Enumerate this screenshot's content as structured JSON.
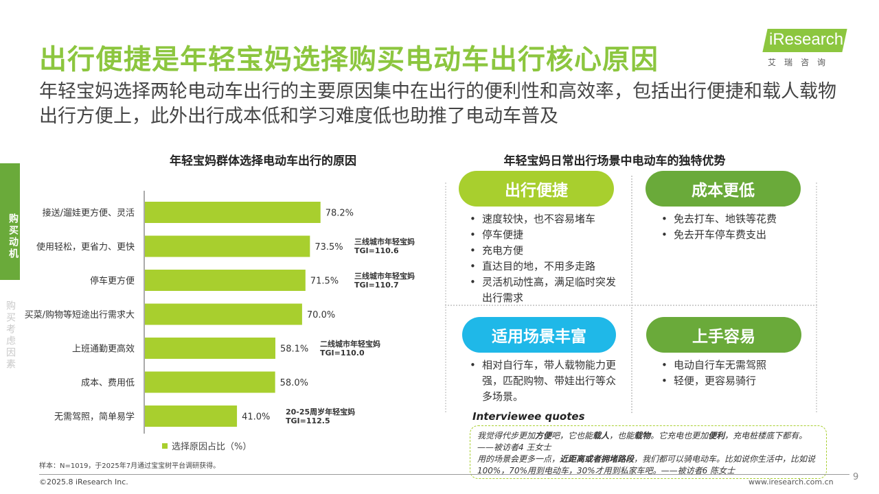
{
  "title": "出行便捷是年轻宝妈选择购买电动车出行核心原因",
  "subtitle": "年轻宝妈选择两轮电动车出行的主要原因集中在出行的便利性和高效率，包括出行便捷和载人载物出行方便上，此外出行成本低和学习难度低也助推了电动车普及",
  "logo": {
    "brand": "iResearch",
    "sub": "艾瑞咨询"
  },
  "side_tabs": {
    "active": "购买动机",
    "inactive": "购买考虑因素"
  },
  "chart_data": {
    "type": "bar",
    "orientation": "horizontal",
    "title": "年轻宝妈群体选择电动车出行的原因",
    "categories": [
      "接送/遛娃更方便、灵活",
      "使用轻松，更省力、更快",
      "停车更方便",
      "买菜/购物等短途出行需求大",
      "上班通勤更高效",
      "成本、费用低",
      "无需驾照，简单易学"
    ],
    "series": [
      {
        "name": "选择原因占比（%）",
        "values": [
          78.2,
          73.5,
          71.5,
          70.0,
          58.1,
          58.0,
          41.0
        ]
      }
    ],
    "value_labels": [
      "78.2%",
      "73.5%",
      "71.5%",
      "70.0%",
      "58.1%",
      "58.0%",
      "41.0%"
    ],
    "xlim": [
      0,
      100
    ],
    "color": "#a8cf2e",
    "annotations": [
      {
        "category": "使用轻松，更省力、更快",
        "line1": "三线城市年轻宝妈",
        "line2": "TGI=110.6"
      },
      {
        "category": "停车更方便",
        "line1": "三线城市年轻宝妈",
        "line2": "TGI=110.7"
      },
      {
        "category": "上班通勤更高效",
        "line1": "二线城市年轻宝妈",
        "line2": "TGI=110.0"
      },
      {
        "category": "无需驾照，简单易学",
        "line1": "20-25周岁年轻宝妈",
        "line2": "TGI=112.5"
      }
    ]
  },
  "right_panel": {
    "title": "年轻宝妈日常出行场景中电动车的独特优势",
    "quadrants": [
      {
        "label": "出行便捷",
        "items": [
          "速度较快，也不容易堵车",
          "停车便捷",
          "充电方便",
          "直达目的地，不用多走路",
          "灵活机动性高，满足临时突发出行需求"
        ]
      },
      {
        "label": "成本更低",
        "items": [
          "免去打车、地铁等花费",
          "免去开车停车费支出"
        ]
      },
      {
        "label": "适用场景丰富",
        "items": [
          "相对自行车，带人载物能力更强，匹配购物、带娃出行等众多场景。"
        ]
      },
      {
        "label": "上手容易",
        "items": [
          "电动自行车无需驾照",
          "轻便，更容易骑行"
        ]
      }
    ]
  },
  "quotes": {
    "title": "Interviewee quotes",
    "q1": {
      "a": "我觉得代步更加",
      "b": "方便",
      "c": "吧，它也能",
      "d": "载人",
      "e": "，也能",
      "f": "载物",
      "g": "。它充电也更加",
      "h": "便利",
      "i": "，充电桩楼底下都有。——被访者4 王女士"
    },
    "q2": {
      "a": "用的场景会更多一点，",
      "b": "近距离或者拥堵路段",
      "c": "，我们都可以骑电动车。比如说你生活中，比如说100%，70%用到电动车，30%才用到私家车吧。——被访者6 陈女士"
    }
  },
  "note": "样本：N=1019，于2025年7月通过宝宝树平台调研获得。",
  "footer": {
    "copyright": "©2025.8 iResearch Inc.",
    "url": "www.iresearch.com.cn",
    "page": "9"
  }
}
